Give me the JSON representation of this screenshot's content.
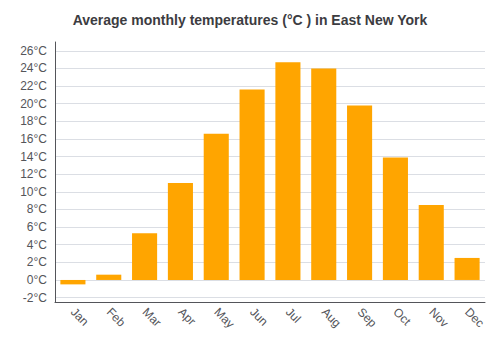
{
  "chart_data": {
    "type": "bar",
    "title": "Average monthly temperatures (°C ) in East New York",
    "categories": [
      "Jan",
      "Feb",
      "Mar",
      "Apr",
      "May",
      "Jun",
      "Jul",
      "Aug",
      "Sep",
      "Oct",
      "Nov",
      "Dec"
    ],
    "values": [
      -0.5,
      0.6,
      5.3,
      11.0,
      16.6,
      21.6,
      24.7,
      24.0,
      19.8,
      13.9,
      8.5,
      2.5
    ],
    "color": "#FFA500",
    "ylim": [
      -2.5,
      27
    ],
    "yticks": [
      {
        "value": -2,
        "label": "-2°C"
      },
      {
        "value": 0,
        "label": "0°C"
      },
      {
        "value": 2,
        "label": "2°C"
      },
      {
        "value": 4,
        "label": "4°C"
      },
      {
        "value": 6,
        "label": "6°C"
      },
      {
        "value": 8,
        "label": "8°C"
      },
      {
        "value": 10,
        "label": "10°C"
      },
      {
        "value": 12,
        "label": "12°C"
      },
      {
        "value": 14,
        "label": "14°C"
      },
      {
        "value": 16,
        "label": "16°C"
      },
      {
        "value": 18,
        "label": "18°C"
      },
      {
        "value": 20,
        "label": "20°C"
      },
      {
        "value": 22,
        "label": "22°C"
      },
      {
        "value": 24,
        "label": "24°C"
      },
      {
        "value": 26,
        "label": "26°C"
      }
    ],
    "grid": true
  }
}
